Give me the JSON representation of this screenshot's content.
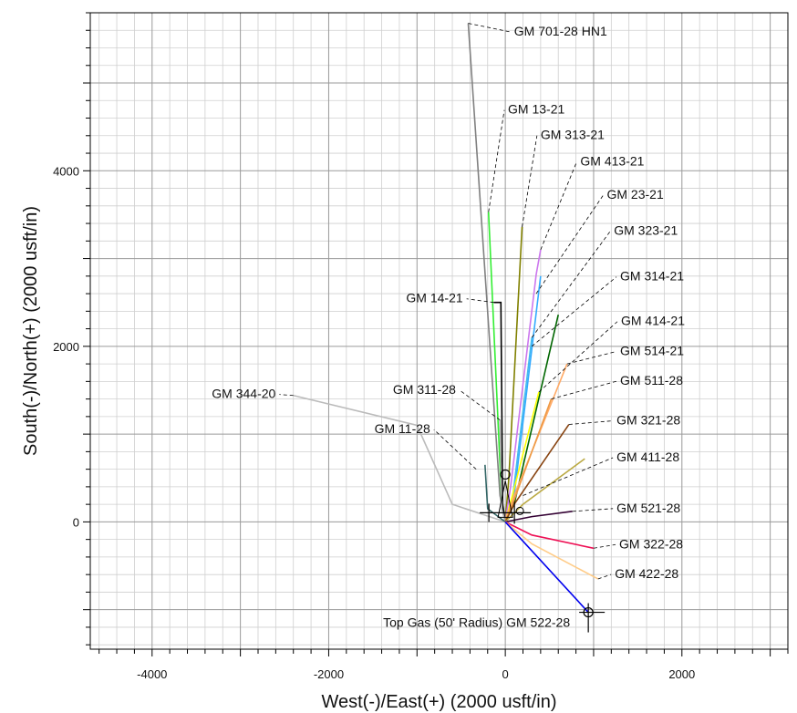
{
  "chart_data": {
    "type": "line",
    "title": "",
    "xlabel": "West(-)/East(+) (2000 usft/in)",
    "ylabel": "South(-)/North(+) (2000 usft/in)",
    "xlim": [
      -4700,
      3200
    ],
    "ylim": [
      -1450,
      5800
    ],
    "grid": true,
    "x_ticks": [
      {
        "value": -4000,
        "label": "-4000"
      },
      {
        "value": -2000,
        "label": "-2000"
      },
      {
        "value": 0,
        "label": "0"
      },
      {
        "value": 2000,
        "label": "2000"
      }
    ],
    "y_ticks": [
      {
        "value": 0,
        "label": "0"
      },
      {
        "value": 2000,
        "label": "2000"
      },
      {
        "value": 4000,
        "label": "4000"
      }
    ],
    "wells": [
      {
        "name": "GM 701-28 HN1",
        "color": "#808080",
        "points": [
          [
            0,
            0
          ],
          [
            -60,
            300
          ],
          [
            -420,
            5680
          ]
        ],
        "label_anchor": [
          -420,
          5680
        ],
        "label_pos": [
          100,
          5540
        ]
      },
      {
        "name": "GM 13-21",
        "color": "#33ee33",
        "points": [
          [
            0,
            0
          ],
          [
            -40,
            200
          ],
          [
            -190,
            3530
          ]
        ],
        "label_anchor": [
          -190,
          3530
        ],
        "label_pos": [
          30,
          4650
        ]
      },
      {
        "name": "GM 313-21",
        "color": "#808000",
        "points": [
          [
            0,
            0
          ],
          [
            40,
            500
          ],
          [
            190,
            3360
          ]
        ],
        "label_anchor": [
          190,
          3360
        ],
        "label_pos": [
          400,
          4360
        ]
      },
      {
        "name": "GM 413-21",
        "color": "#cc77ee",
        "points": [
          [
            0,
            0
          ],
          [
            60,
            400
          ],
          [
            350,
            2820
          ],
          [
            400,
            3100
          ]
        ],
        "label_anchor": [
          400,
          3100
        ],
        "label_pos": [
          850,
          4060
        ]
      },
      {
        "name": "GM 23-21",
        "color": "#33aaff",
        "points": [
          [
            0,
            0
          ],
          [
            100,
            300
          ],
          [
            400,
            2800
          ]
        ],
        "label_anchor": [
          350,
          2600
        ],
        "label_pos": [
          1150,
          3680
        ]
      },
      {
        "name": "GM 323-21",
        "color": "#44bbee",
        "points": [
          [
            0,
            0
          ],
          [
            80,
            250
          ],
          [
            300,
            2100
          ]
        ],
        "label_anchor": [
          300,
          2100
        ],
        "label_pos": [
          1230,
          3270
        ]
      },
      {
        "name": "GM 314-21",
        "color": "#006600",
        "points": [
          [
            0,
            0
          ],
          [
            100,
            200
          ],
          [
            600,
            2360
          ]
        ],
        "label_anchor": [
          300,
          2000
        ],
        "label_pos": [
          1300,
          2750
        ]
      },
      {
        "name": "GM 14-21",
        "color": "#000000",
        "points": [
          [
            0,
            0
          ],
          [
            -30,
            200
          ],
          [
            -50,
            2500
          ],
          [
            -130,
            2500
          ]
        ],
        "label_anchor": [
          -130,
          2500
        ],
        "label_pos": [
          -480,
          2500
        ]
      },
      {
        "name": "GM 414-21",
        "color": "#ffff00",
        "points": [
          [
            0,
            0
          ],
          [
            80,
            300
          ],
          [
            380,
            1480
          ]
        ],
        "label_anchor": [
          380,
          1480
        ],
        "label_pos": [
          1310,
          2240
        ]
      },
      {
        "name": "GM 514-21",
        "color": "#ffaa66",
        "points": [
          [
            0,
            0
          ],
          [
            100,
            300
          ],
          [
            700,
            1800
          ]
        ],
        "label_anchor": [
          700,
          1800
        ],
        "label_pos": [
          1300,
          1900
        ]
      },
      {
        "name": "GM 511-28",
        "color": "#ee9944",
        "points": [
          [
            0,
            0
          ],
          [
            100,
            250
          ],
          [
            520,
            1400
          ]
        ],
        "label_anchor": [
          520,
          1400
        ],
        "label_pos": [
          1300,
          1560
        ]
      },
      {
        "name": "GM 311-28",
        "color": "#aaaaaa",
        "points": [
          [
            0,
            0
          ],
          [
            -40,
            150
          ],
          [
            -60,
            1160
          ]
        ],
        "label_anchor": [
          -60,
          1160
        ],
        "label_pos": [
          -560,
          1460
        ]
      },
      {
        "name": "GM 344-20",
        "color": "#bbbbbb",
        "points": [
          [
            0,
            0
          ],
          [
            -600,
            200
          ],
          [
            -1000,
            1100
          ],
          [
            -2400,
            1440
          ]
        ],
        "label_anchor": [
          -2400,
          1440
        ],
        "label_pos": [
          -2600,
          1410
        ]
      },
      {
        "name": "GM 11-28",
        "color": "#336666",
        "points": [
          [
            0,
            0
          ],
          [
            -200,
            150
          ],
          [
            -230,
            650
          ]
        ],
        "label_anchor": [
          -330,
          600
        ],
        "label_pos": [
          -850,
          1010
        ]
      },
      {
        "name": "GM 321-28",
        "color": "#884411",
        "points": [
          [
            0,
            0
          ],
          [
            100,
            200
          ],
          [
            720,
            1110
          ]
        ],
        "label_anchor": [
          720,
          1110
        ],
        "label_pos": [
          1260,
          1110
        ]
      },
      {
        "name": "GM 411-28",
        "color": "#bbaa44",
        "points": [
          [
            0,
            0
          ],
          [
            200,
            200
          ],
          [
            900,
            720
          ]
        ],
        "label_anchor": [
          200,
          300
        ],
        "label_pos": [
          1260,
          690
        ]
      },
      {
        "name": "GM 521-28",
        "color": "#330033",
        "points": [
          [
            0,
            0
          ],
          [
            300,
            60
          ],
          [
            760,
            120
          ]
        ],
        "label_anchor": [
          760,
          120
        ],
        "label_pos": [
          1260,
          110
        ]
      },
      {
        "name": "GM 322-28",
        "color": "#ee1155",
        "points": [
          [
            0,
            0
          ],
          [
            300,
            -150
          ],
          [
            1000,
            -300
          ]
        ],
        "label_anchor": [
          1000,
          -300
        ],
        "label_pos": [
          1290,
          -300
        ]
      },
      {
        "name": "GM 422-28",
        "color": "#ffcc88",
        "points": [
          [
            0,
            0
          ],
          [
            300,
            -250
          ],
          [
            1050,
            -650
          ]
        ],
        "label_anchor": [
          1050,
          -650
        ],
        "label_pos": [
          1240,
          -640
        ]
      },
      {
        "name": "GM 522-28",
        "color": "#0000ee",
        "points": [
          [
            0,
            0
          ],
          [
            940,
            -1030
          ]
        ],
        "label_anchor": [
          940,
          -1030
        ],
        "label_pos": [
          820,
          -1110
        ]
      }
    ],
    "annotations": [
      {
        "text": "Top Gas (50' Radius) GM 522-28",
        "at": [
          940,
          -1030
        ]
      }
    ]
  }
}
